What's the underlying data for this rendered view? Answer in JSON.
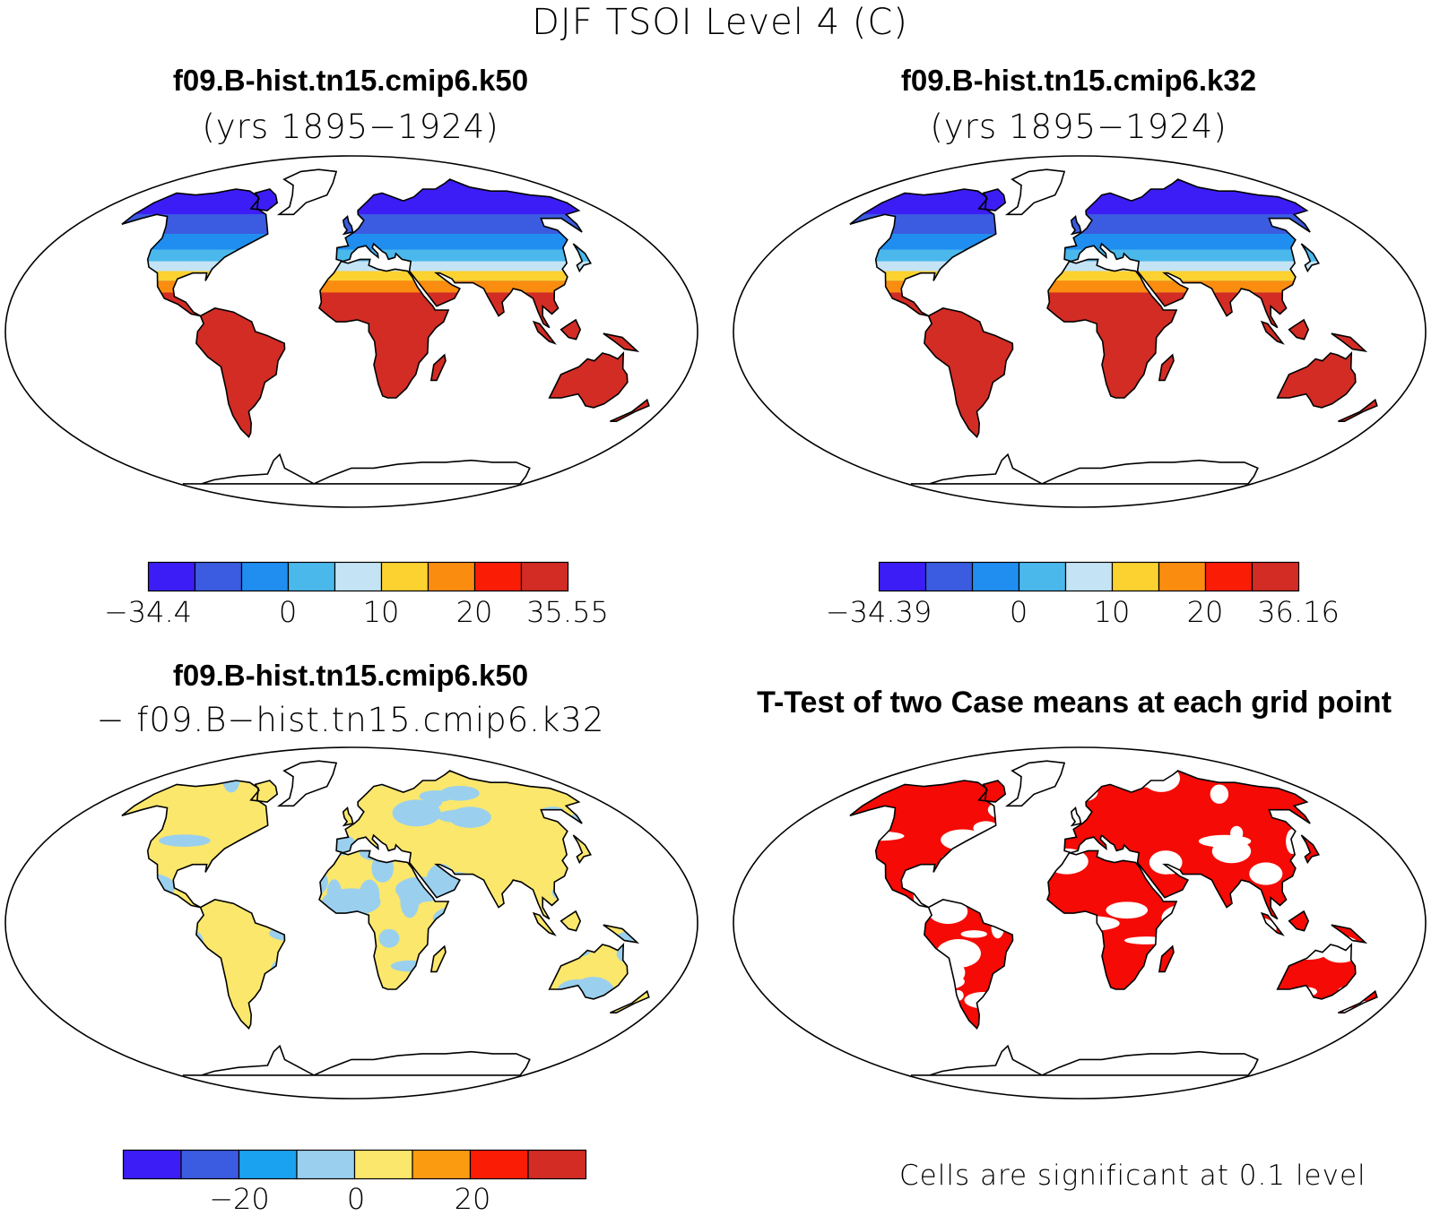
{
  "title": "DJF TSOI Level 4 (C)",
  "colors": {
    "outline": "#000000",
    "background": "#ffffff",
    "abs_palette": [
      "#3c1df5",
      "#3b5be0",
      "#1f8ef0",
      "#4bb8ec",
      "#c4e4f5",
      "#fcd230",
      "#fa8c10",
      "#fa1c05",
      "#d22c25"
    ],
    "diff_palette": [
      "#3c1df5",
      "#3b5be0",
      "#1aa2f0",
      "#9ad0ee",
      "#fbe76c",
      "#fa9b10",
      "#fa1c05",
      "#d22c25"
    ],
    "ttest_fill": "#f50a05"
  },
  "panels": {
    "case1": {
      "title": "f09.B-hist.tn15.cmip6.k50",
      "subtitle": "(yrs 1895−1924)",
      "colorbar": {
        "min_label": "−34.4",
        "max_label": "35.55",
        "ticks": [
          "0",
          "10",
          "20"
        ]
      }
    },
    "case2": {
      "title": "f09.B-hist.tn15.cmip6.k32",
      "subtitle": "(yrs 1895−1924)",
      "colorbar": {
        "min_label": "−34.39",
        "max_label": "36.16",
        "ticks": [
          "0",
          "10",
          "20"
        ]
      }
    },
    "diff": {
      "title": "f09.B-hist.tn15.cmip6.k50",
      "subtitle": "− f09.B−hist.tn15.cmip6.k32",
      "colorbar": {
        "ticks": [
          "−20",
          "0",
          "20"
        ]
      }
    },
    "ttest": {
      "title": "T-Test of two Case means at each grid point",
      "note": "Cells are significant at 0.1 level"
    }
  }
}
